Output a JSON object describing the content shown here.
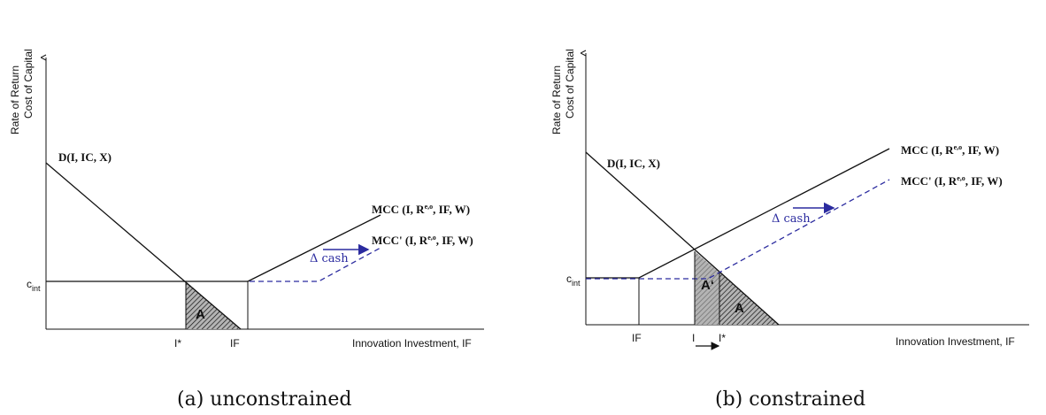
{
  "panels": {
    "a": {
      "y_axis_line1": "Rate of Return",
      "y_axis_line2": "Cost of Capital",
      "x_axis_label": "Innovation Investment, IF",
      "demand_label": "D(I, IC, X)",
      "mcc_label": {
        "pre": "MCC (I, R",
        "sup": "e,o",
        "post": ", IF, W)"
      },
      "mcc_prime_label": {
        "pre": "MCC' (I, R",
        "sup": "e,o",
        "post": ", IF, W)"
      },
      "cint_label": {
        "main": "c",
        "sub": "int"
      },
      "area_label": "A",
      "delta_cash": "Δ cash",
      "tick_istar": "I*",
      "tick_if": "IF",
      "caption": "(a) unconstrained"
    },
    "b": {
      "y_axis_line1": "Rate of Return",
      "y_axis_line2": "Cost of Capital",
      "x_axis_label": "Innovation Investment, IF",
      "demand_label": "D(I, IC, X)",
      "mcc_label": {
        "pre": "MCC (I, R",
        "sup": "e,o",
        "post": ", IF, W)"
      },
      "mcc_prime_label": {
        "pre": "MCC' (I, R",
        "sup": "e,o",
        "post": ", IF, W)"
      },
      "cint_label": {
        "main": "c",
        "sub": "int"
      },
      "area_label_left": "A‘",
      "area_label_right": "A",
      "delta_cash": "Δ cash",
      "tick_if": "IF",
      "tick_i": "I",
      "tick_istar": "I*",
      "caption": "(b) constrained"
    }
  },
  "colors": {
    "line": "#111111",
    "shift": "#2b2b9f",
    "shade": "#b4b4b4"
  }
}
